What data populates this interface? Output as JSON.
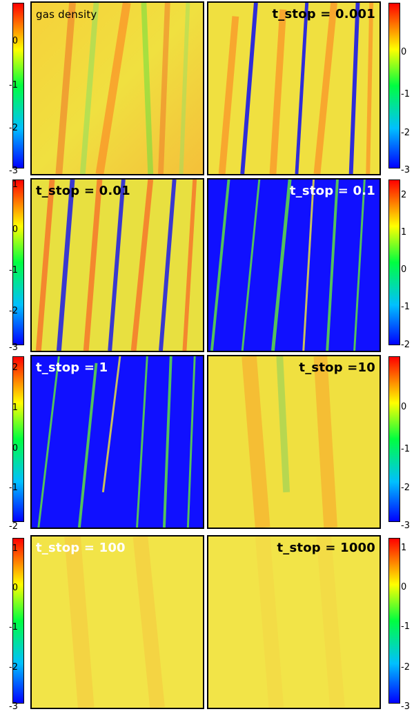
{
  "colormap": {
    "stops": [
      "#0000ff",
      "#00c0ff",
      "#00ff40",
      "#ffff00",
      "#ff8000",
      "#ff0000"
    ]
  },
  "panels": [
    {
      "label": "gas density",
      "base": "#f5d23a"
    },
    {
      "label": "t_stop = 0.001",
      "base": "#f0e040"
    },
    {
      "label": "t_stop = 0.01",
      "base": "#e8e040"
    },
    {
      "label": "t_stop = 0.1",
      "base": "#1010ff"
    },
    {
      "label": "t_stop = 1",
      "base": "#1010ff"
    },
    {
      "label": "t_stop =10",
      "base": "#f0e040"
    },
    {
      "label": "t_stop = 100",
      "base": "#f2e448"
    },
    {
      "label": "t_stop = 1000",
      "base": "#f2e448"
    }
  ],
  "colorbars": {
    "row1_left": [
      "0",
      "-1",
      "-2",
      "-3"
    ],
    "row1_right": [
      "0",
      "-1",
      "-2",
      "-3"
    ],
    "row2_left": [
      "1",
      "0",
      "-1",
      "-2",
      "-3"
    ],
    "row2_right": [
      "2",
      "1",
      "0",
      "-1",
      "-2"
    ],
    "row3_left": [
      "2",
      "1",
      "0",
      "-1",
      "-2"
    ],
    "row3_right": [
      "0",
      "-1",
      "-2",
      "-3"
    ],
    "row4_left": [
      "1",
      "0",
      "-1",
      "-2",
      "-3"
    ],
    "row4_right": [
      "1",
      "0",
      "-1",
      "-2",
      "-3"
    ]
  }
}
